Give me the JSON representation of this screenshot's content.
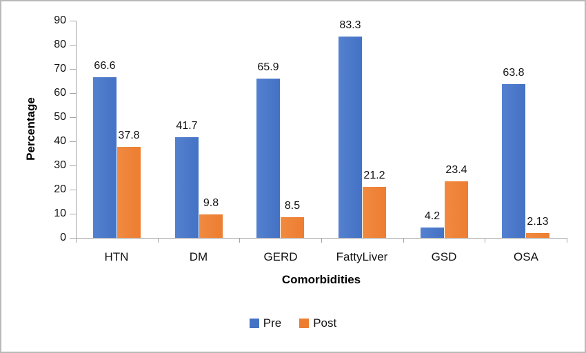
{
  "figure": {
    "background": "#ffffff",
    "border_color": "#b9b9b9"
  },
  "chart_data": {
    "type": "bar",
    "title": "",
    "xlabel": "Comorbidities",
    "ylabel": "Percentage",
    "categories": [
      "HTN",
      "DM",
      "GERD",
      "FattyLiver",
      "GSD",
      "OSA"
    ],
    "series": [
      {
        "name": "Pre",
        "color": "#4472C4",
        "values": [
          66.6,
          41.7,
          65.9,
          83.3,
          4.2,
          63.8
        ],
        "labels": [
          "66.6",
          "41.7",
          "65.9",
          "83.3",
          "4.2",
          "63.8"
        ]
      },
      {
        "name": "Post",
        "color": "#ED7D31",
        "values": [
          37.8,
          9.8,
          8.5,
          21.2,
          23.4,
          2.13
        ],
        "labels": [
          "37.8",
          "9.8",
          "8.5",
          "21.2",
          "23.4",
          "2.13"
        ]
      }
    ],
    "ylim": [
      0,
      90
    ],
    "ytick_step": 10,
    "yticks": [
      "0",
      "10",
      "20",
      "30",
      "40",
      "50",
      "60",
      "70",
      "80",
      "90"
    ],
    "grid": false,
    "data_labels_shown": true,
    "legend_position": "bottom",
    "axis_color": "#a6a6a6",
    "text_color": "#111111"
  }
}
